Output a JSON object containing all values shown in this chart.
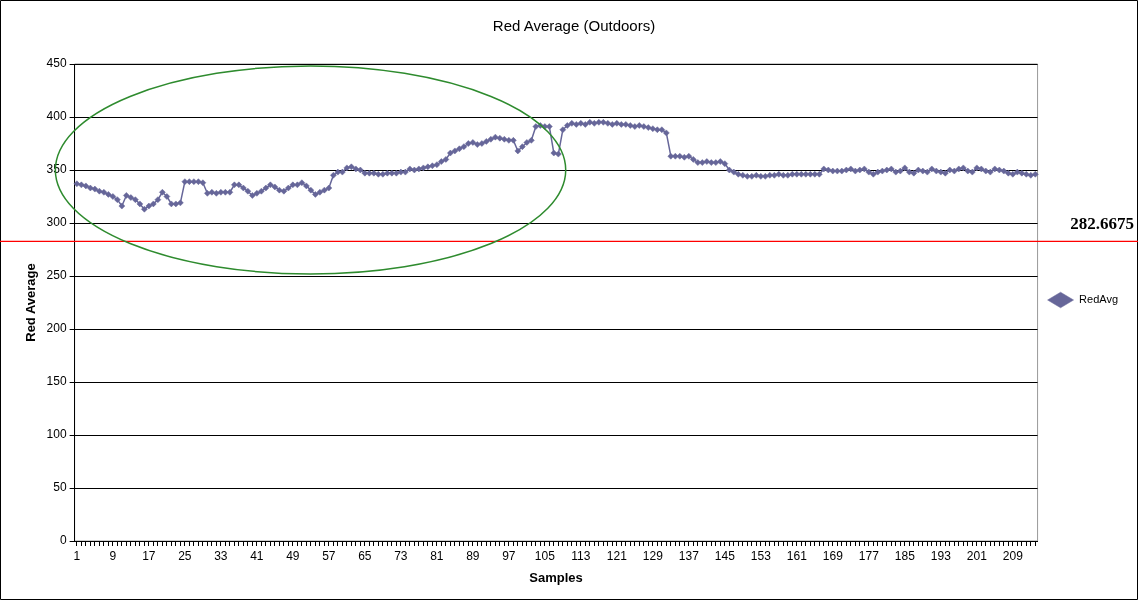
{
  "chart_data": {
    "type": "line",
    "title": "Red Average (Outdoors)",
    "xlabel": "Samples",
    "ylabel": "Red Average",
    "categories": [
      "1",
      null,
      null,
      null,
      null,
      null,
      null,
      null,
      "9",
      null,
      null,
      null,
      null,
      null,
      null,
      null,
      "17",
      null,
      null,
      null,
      null,
      null,
      null,
      null,
      "25",
      null,
      null,
      null,
      null,
      null,
      null,
      null,
      "33",
      null,
      null,
      null,
      null,
      null,
      null,
      null,
      "41",
      null,
      null,
      null,
      null,
      null,
      null,
      null,
      "49",
      null,
      null,
      null,
      null,
      null,
      null,
      null,
      "57",
      null,
      null,
      null,
      null,
      null,
      null,
      null,
      "65",
      null,
      null,
      null,
      null,
      null,
      null,
      null,
      "73",
      null,
      null,
      null,
      null,
      null,
      null,
      null,
      "81",
      null,
      null,
      null,
      null,
      null,
      null,
      null,
      "89",
      null,
      null,
      null,
      null,
      null,
      null,
      null,
      "97",
      null,
      null,
      null,
      null,
      null,
      null,
      null,
      "105",
      null,
      null,
      null,
      null,
      null,
      null,
      null,
      "113",
      null,
      null,
      null,
      null,
      null,
      null,
      null,
      "121",
      null,
      null,
      null,
      null,
      null,
      null,
      null,
      "129",
      null,
      null,
      null,
      null,
      null,
      null,
      null,
      "137",
      null,
      null,
      null,
      null,
      null,
      null,
      null,
      "145",
      null,
      null,
      null,
      null,
      null,
      null,
      null,
      "153",
      null,
      null,
      null,
      null,
      null,
      null,
      null,
      "161",
      null,
      null,
      null,
      null,
      null,
      null,
      null,
      "169",
      null,
      null,
      null,
      null,
      null,
      null,
      null,
      "177",
      null,
      null,
      null,
      null,
      null,
      null,
      null,
      "185",
      null,
      null,
      null,
      null,
      null,
      null,
      null,
      "193",
      null,
      null,
      null,
      null,
      null,
      null,
      null,
      "201",
      null,
      null,
      null,
      null,
      null,
      null,
      null,
      "209",
      null,
      null,
      null,
      null,
      null
    ],
    "series": [
      {
        "name": "RedAvg",
        "color": "#666699",
        "values": [
          337,
          336,
          335,
          333,
          332,
          330,
          329,
          327,
          325,
          322,
          316,
          326,
          324,
          322,
          318,
          313,
          316,
          318,
          322,
          329,
          325,
          318,
          318,
          319,
          339,
          339,
          339,
          339,
          338,
          328,
          329,
          328,
          329,
          329,
          329,
          336,
          336,
          333,
          330,
          326,
          328,
          330,
          333,
          336,
          334,
          331,
          330,
          333,
          336,
          336,
          338,
          335,
          331,
          327,
          329,
          331,
          333,
          345,
          348,
          348,
          352,
          353,
          351,
          350,
          347,
          347,
          347,
          346,
          346,
          347,
          347,
          347,
          348,
          348,
          351,
          350,
          351,
          352,
          353,
          354,
          355,
          358,
          360,
          366,
          368,
          370,
          372,
          375,
          376,
          374,
          375,
          377,
          379,
          381,
          380,
          379,
          378,
          378,
          368,
          372,
          376,
          378,
          391,
          392,
          391,
          391,
          366,
          365,
          388,
          392,
          394,
          393,
          394,
          393,
          395,
          394,
          395,
          395,
          394,
          393,
          394,
          393,
          393,
          392,
          391,
          392,
          391,
          390,
          389,
          388,
          388,
          385,
          363,
          363,
          363,
          362,
          363,
          360,
          357,
          357,
          358,
          357,
          357,
          358,
          356,
          350,
          348,
          346,
          345,
          344,
          344,
          345,
          344,
          344,
          345,
          345,
          346,
          345,
          345,
          346,
          346,
          346,
          346,
          346,
          346,
          346,
          351,
          350,
          349,
          349,
          349,
          350,
          351,
          349,
          350,
          351,
          348,
          346,
          348,
          349,
          350,
          351,
          348,
          349,
          352,
          348,
          347,
          350,
          349,
          348,
          351,
          349,
          348,
          347,
          350,
          349,
          351,
          352,
          349,
          348,
          352,
          351,
          349,
          348,
          351,
          350,
          349,
          347,
          346,
          348,
          347,
          346,
          345,
          346
        ]
      }
    ],
    "ylim": [
      0,
      450
    ],
    "yticks": [
      0,
      50,
      100,
      150,
      200,
      250,
      300,
      350,
      400,
      450
    ],
    "grid": "y",
    "legend": "right",
    "marker": "diamond",
    "line_style": "solid",
    "ref_lines": [
      {
        "axis": "y",
        "value": 282.6675,
        "label": "282.6675",
        "color": "#ff0000"
      }
    ]
  }
}
